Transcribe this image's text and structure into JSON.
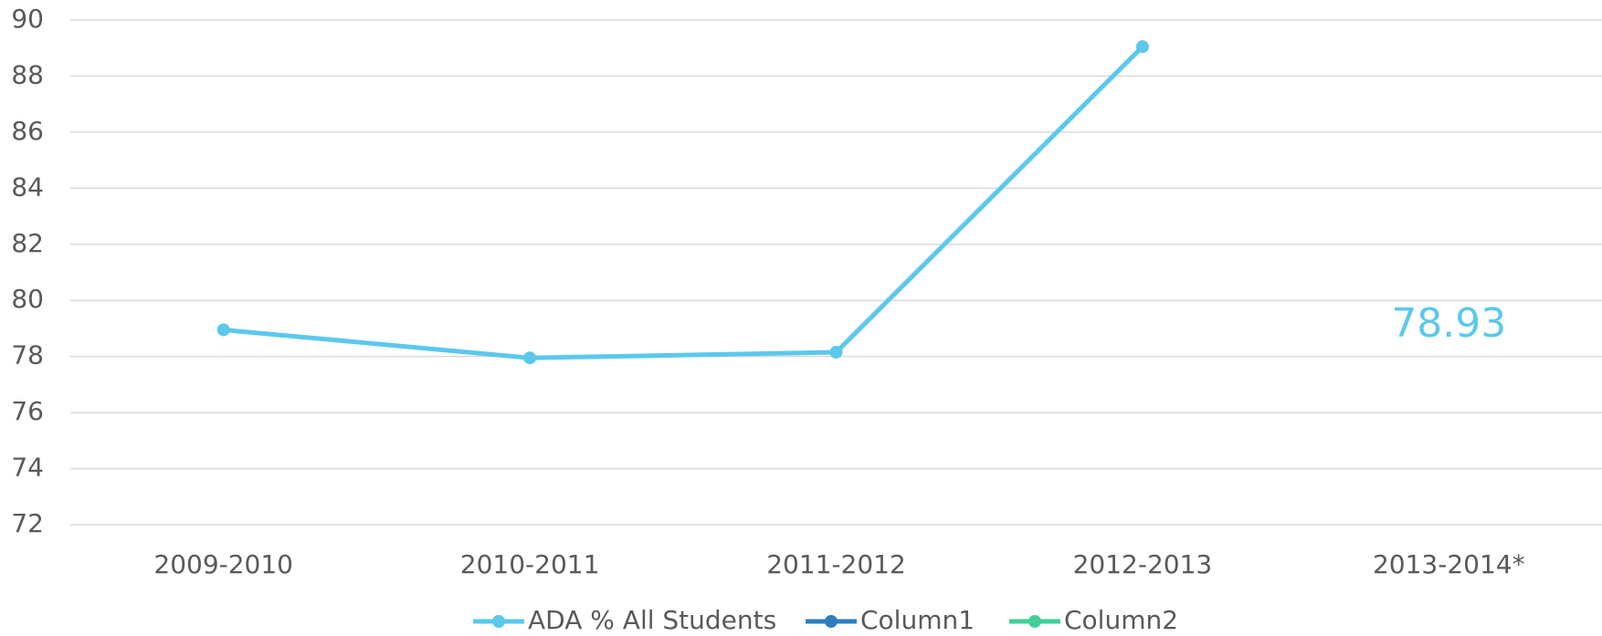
{
  "chart_data": {
    "type": "line",
    "categories": [
      "2009-2010",
      "2010-2011",
      "2011-2012",
      "2012-2013",
      "2013-2014*"
    ],
    "series": [
      {
        "name": "ADA % All Students",
        "color": "#5bc8ec",
        "values": [
          78.95,
          77.95,
          78.15,
          89.05,
          null
        ]
      },
      {
        "name": "Column1",
        "color": "#2e7dc0",
        "values": [
          null,
          null,
          null,
          null,
          null
        ]
      },
      {
        "name": "Column2",
        "color": "#3fcf99",
        "values": [
          null,
          null,
          null,
          null,
          null
        ]
      }
    ],
    "annotations": [
      {
        "text": "78.93"
      }
    ],
    "ylim": [
      72,
      90
    ],
    "yticks": [
      72,
      74,
      76,
      78,
      80,
      82,
      84,
      86,
      88,
      90
    ],
    "grid": true,
    "legend": "bottom"
  }
}
